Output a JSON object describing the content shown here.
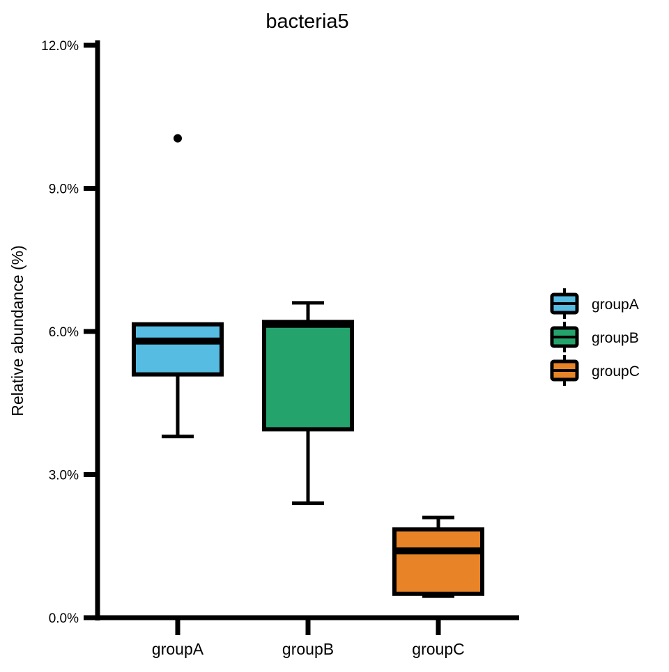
{
  "chart_data": {
    "type": "boxplot",
    "title": "bacteria5",
    "xlabel": "",
    "ylabel": "Relative abundance (%)",
    "ylim": [
      0,
      12
    ],
    "yticks": [
      0,
      3,
      6,
      9,
      12
    ],
    "ytick_labels": [
      "0.0%",
      "3.0%",
      "6.0%",
      "9.0%",
      "12.0%"
    ],
    "categories": [
      "groupA",
      "groupB",
      "groupC"
    ],
    "legend": {
      "position": "right",
      "entries": [
        "groupA",
        "groupB",
        "groupC"
      ]
    },
    "grid": false,
    "series": [
      {
        "name": "groupA",
        "color": "#56BCE2",
        "whisker_low": 3.8,
        "q1": 5.1,
        "median": 5.8,
        "q3": 6.15,
        "whisker_high": 6.15,
        "outliers": [
          10.05
        ]
      },
      {
        "name": "groupB",
        "color": "#24A46C",
        "whisker_low": 2.4,
        "q1": 3.95,
        "median": 6.15,
        "q3": 6.2,
        "whisker_high": 6.6,
        "outliers": []
      },
      {
        "name": "groupC",
        "color": "#E88427",
        "whisker_low": 0.45,
        "q1": 0.5,
        "median": 1.4,
        "q3": 1.85,
        "whisker_high": 2.1,
        "outliers": []
      }
    ]
  }
}
